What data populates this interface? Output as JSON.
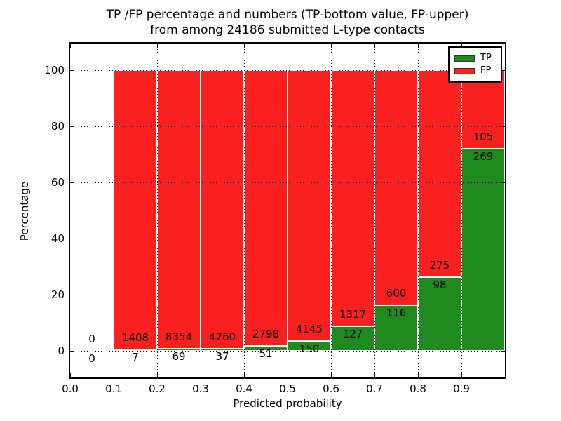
{
  "title": {
    "line1": "TP /FP percentage and numbers (TP-bottom value, FP-upper)",
    "line2": "from among 24186 submitted L-type contacts"
  },
  "colors": {
    "tp": "#1f8b1f",
    "fp": "#fb2020",
    "grid": "#000000",
    "background": "#ffffff"
  },
  "chart_data": {
    "type": "bar",
    "stacked": true,
    "normalized_to_percent": true,
    "title": "TP /FP percentage and numbers (TP-bottom value, FP-upper) from among 24186 submitted L-type contacts",
    "xlabel": "Predicted probability",
    "ylabel": "Percentage",
    "total_contacts": 24186,
    "xlim": [
      0.0,
      1.0
    ],
    "ylim": [
      -9.5,
      109.5
    ],
    "x_ticks": [
      "0.0",
      "0.1",
      "0.2",
      "0.3",
      "0.4",
      "0.5",
      "0.6",
      "0.7",
      "0.8",
      "0.9"
    ],
    "y_ticks": [
      0,
      20,
      40,
      60,
      80,
      100
    ],
    "grid": true,
    "grid_style": "dotted",
    "legend_position": "upper right",
    "legend": [
      {
        "label": "TP",
        "color": "#1f8b1f"
      },
      {
        "label": "FP",
        "color": "#fb2020"
      }
    ],
    "bins": [
      {
        "range": [
          0.0,
          0.1
        ],
        "tp": 0,
        "fp": 0
      },
      {
        "range": [
          0.1,
          0.2
        ],
        "tp": 7,
        "fp": 1408
      },
      {
        "range": [
          0.2,
          0.3
        ],
        "tp": 69,
        "fp": 8354
      },
      {
        "range": [
          0.3,
          0.4
        ],
        "tp": 37,
        "fp": 4260
      },
      {
        "range": [
          0.4,
          0.5
        ],
        "tp": 51,
        "fp": 2798
      },
      {
        "range": [
          0.5,
          0.6
        ],
        "tp": 150,
        "fp": 4145
      },
      {
        "range": [
          0.6,
          0.7
        ],
        "tp": 127,
        "fp": 1317
      },
      {
        "range": [
          0.7,
          0.8
        ],
        "tp": 116,
        "fp": 600
      },
      {
        "range": [
          0.8,
          0.9
        ],
        "tp": 98,
        "fp": 275
      },
      {
        "range": [
          0.9,
          1.0
        ],
        "tp": 269,
        "fp": 105
      }
    ]
  }
}
